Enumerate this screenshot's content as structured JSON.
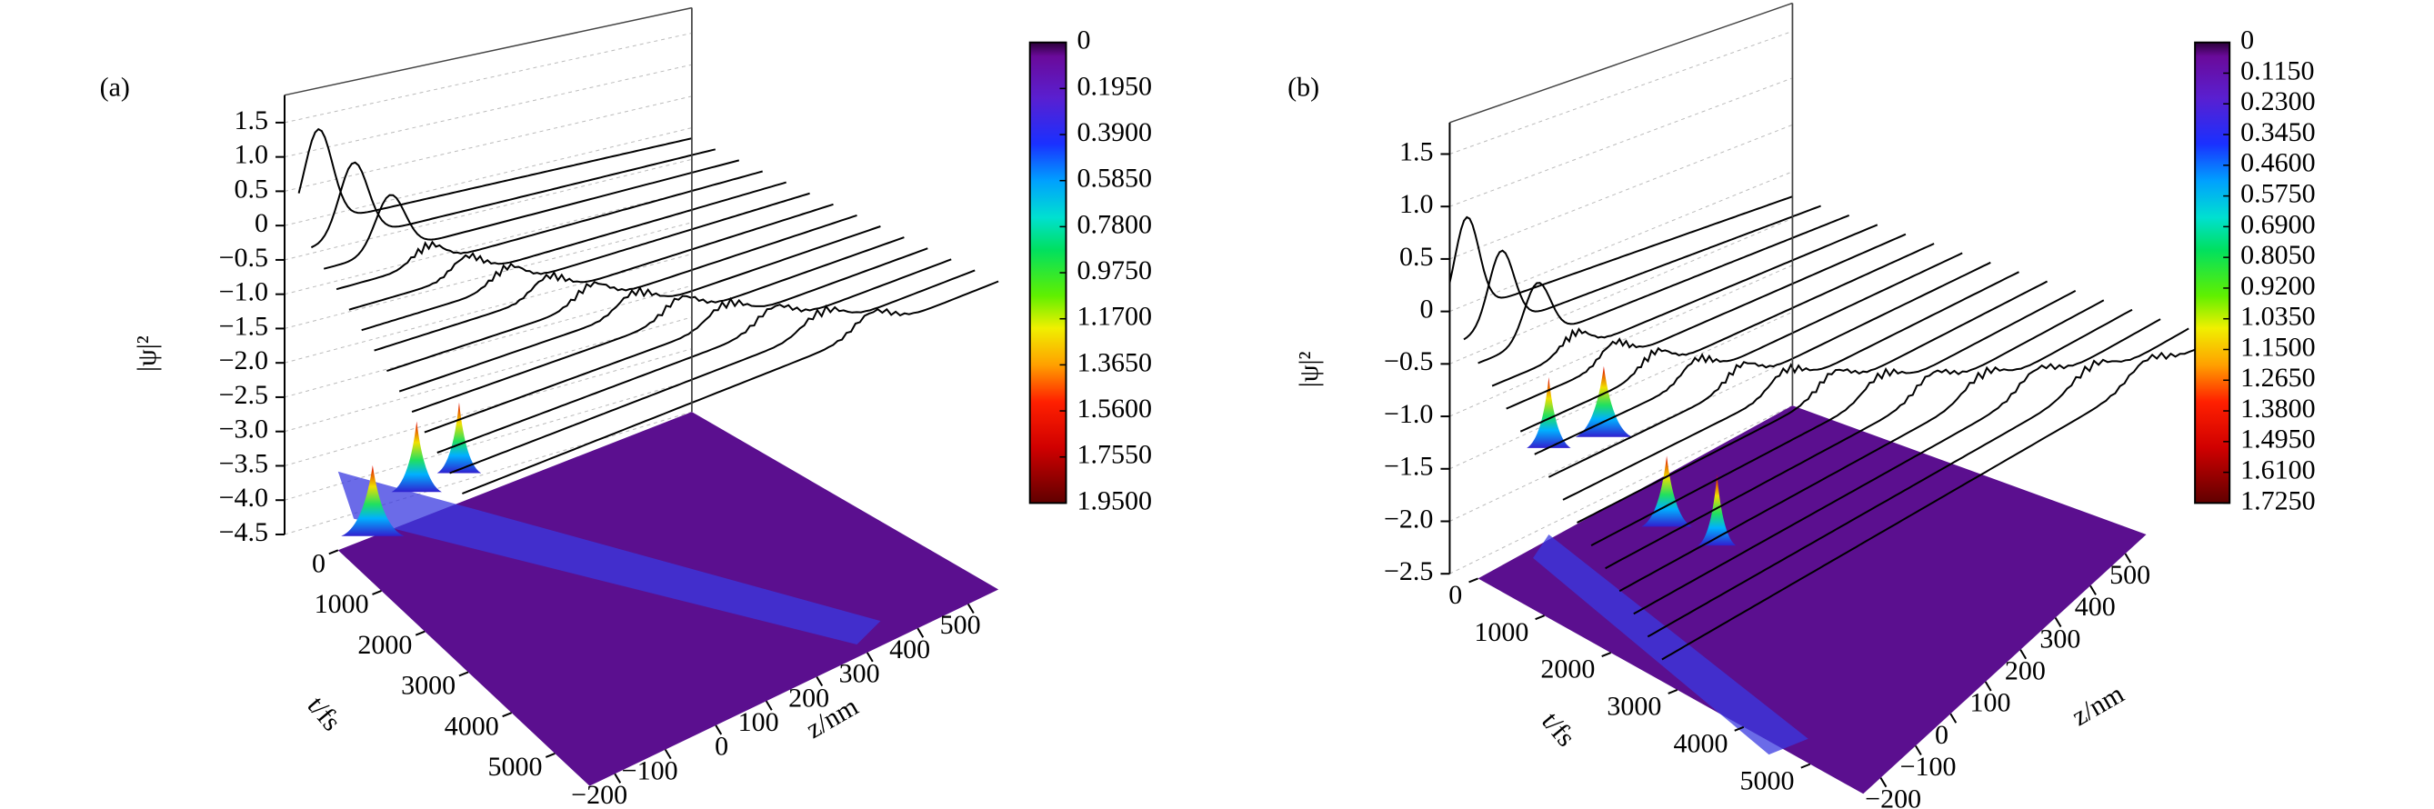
{
  "chart_data": [
    {
      "type": "surface3d",
      "panel_label": "(a)",
      "zlabel": "|ψ|²",
      "xlabel": "t/fs",
      "ylabel": "z/nm",
      "zlim": [
        -4.5,
        1.9
      ],
      "zticks": [
        1.5,
        {
          "value": 1.0,
          "label": "1.0"
        },
        0.5,
        0,
        {
          "value": -0.5,
          "label": "−0.5"
        },
        {
          "value": -1.0,
          "label": "−1.0"
        },
        {
          "value": -1.5,
          "label": "−1.5"
        },
        {
          "value": -2.0,
          "label": "−2.0"
        },
        {
          "value": -2.5,
          "label": "−2.5"
        },
        {
          "value": -3.0,
          "label": "−3.0"
        },
        {
          "value": -3.5,
          "label": "−3.5"
        },
        {
          "value": -4.0,
          "label": "−4.0"
        },
        {
          "value": -4.5,
          "label": "−4.5"
        }
      ],
      "xlim": [
        0,
        5800
      ],
      "xticks": [
        0,
        1000,
        2000,
        3000,
        4000,
        5000
      ],
      "ylim": [
        -250,
        560
      ],
      "yticks": [
        {
          "value": -200,
          "label": "−200"
        },
        {
          "value": -100,
          "label": "−100"
        },
        0,
        100,
        200,
        300,
        400,
        500
      ],
      "colorbar": {
        "lim": [
          0,
          1.95
        ],
        "ticks": [
          0,
          {
            "value": 0.195,
            "label": "0.1950"
          },
          {
            "value": 0.39,
            "label": "0.3900"
          },
          {
            "value": 0.585,
            "label": "0.5850"
          },
          {
            "value": 0.78,
            "label": "0.7800"
          },
          {
            "value": 0.975,
            "label": "0.9750"
          },
          {
            "value": 1.17,
            "label": "1.1700"
          },
          {
            "value": 1.365,
            "label": "1.3650"
          },
          {
            "value": 1.56,
            "label": "1.5600"
          },
          {
            "value": 1.755,
            "label": "1.7550"
          },
          {
            "value": 1.95,
            "label": "1.9500"
          }
        ]
      }
    },
    {
      "type": "surface3d",
      "panel_label": "(b)",
      "zlabel": "|ψ|²",
      "xlabel": "t/fs",
      "ylabel": "z/nm",
      "zlim": [
        -2.5,
        1.8
      ],
      "zticks": [
        1.5,
        {
          "value": 1.0,
          "label": "1.0"
        },
        0.5,
        0,
        {
          "value": -0.5,
          "label": "−0.5"
        },
        {
          "value": -1.0,
          "label": "−1.0"
        },
        {
          "value": -1.5,
          "label": "−1.5"
        },
        {
          "value": -2.0,
          "label": "−2.0"
        },
        {
          "value": -2.5,
          "label": "−2.5"
        }
      ],
      "xlim": [
        0,
        5800
      ],
      "xticks": [
        0,
        1000,
        2000,
        3000,
        4000,
        5000
      ],
      "ylim": [
        -250,
        560
      ],
      "yticks": [
        {
          "value": -200,
          "label": "−200"
        },
        {
          "value": -100,
          "label": "−100"
        },
        0,
        100,
        200,
        300,
        400,
        500
      ],
      "colorbar": {
        "lim": [
          0,
          1.725
        ],
        "ticks": [
          0,
          {
            "value": 0.115,
            "label": "0.1150"
          },
          {
            "value": 0.23,
            "label": "0.2300"
          },
          {
            "value": 0.345,
            "label": "0.3450"
          },
          {
            "value": 0.46,
            "label": "0.4600"
          },
          {
            "value": 0.575,
            "label": "0.5750"
          },
          {
            "value": 0.69,
            "label": "0.6900"
          },
          {
            "value": 0.805,
            "label": "0.8050"
          },
          {
            "value": 0.92,
            "label": "0.9200"
          },
          {
            "value": 1.035,
            "label": "1.0350"
          },
          {
            "value": 1.15,
            "label": "1.1500"
          },
          {
            "value": 1.265,
            "label": "1.2650"
          },
          {
            "value": 1.38,
            "label": "1.3800"
          },
          {
            "value": 1.495,
            "label": "1.4950"
          },
          {
            "value": 1.61,
            "label": "1.6100"
          },
          {
            "value": 1.725,
            "label": "1.7250"
          }
        ]
      }
    }
  ]
}
